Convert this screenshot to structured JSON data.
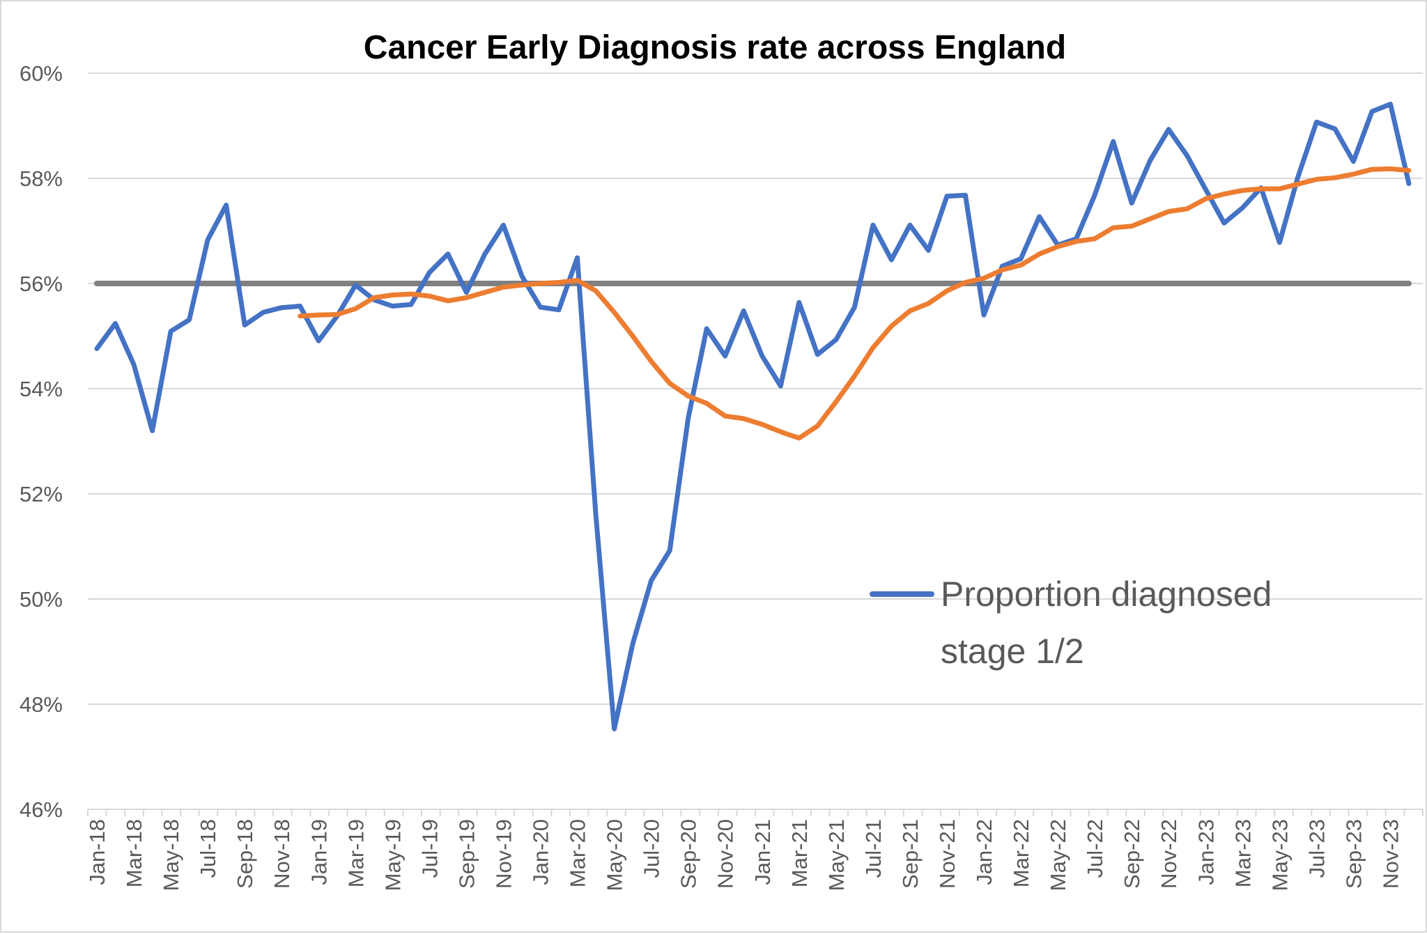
{
  "chart_data": {
    "type": "line",
    "title": "Cancer Early Diagnosis rate across England",
    "xlabel": "",
    "ylabel": "",
    "ylim": [
      46,
      60
    ],
    "yticks": [
      "46%",
      "48%",
      "50%",
      "52%",
      "54%",
      "56%",
      "58%",
      "60%"
    ],
    "ytick_values": [
      46,
      48,
      50,
      52,
      54,
      56,
      58,
      60
    ],
    "grid": true,
    "legend_placement": "center-right",
    "categories": [
      "Jan-18",
      "Feb-18",
      "Mar-18",
      "Apr-18",
      "May-18",
      "Jun-18",
      "Jul-18",
      "Aug-18",
      "Sep-18",
      "Oct-18",
      "Nov-18",
      "Dec-18",
      "Jan-19",
      "Feb-19",
      "Mar-19",
      "Apr-19",
      "May-19",
      "Jun-19",
      "Jul-19",
      "Aug-19",
      "Sep-19",
      "Oct-19",
      "Nov-19",
      "Dec-19",
      "Jan-20",
      "Feb-20",
      "Mar-20",
      "Apr-20",
      "May-20",
      "Jun-20",
      "Jul-20",
      "Aug-20",
      "Sep-20",
      "Oct-20",
      "Nov-20",
      "Dec-20",
      "Jan-21",
      "Feb-21",
      "Mar-21",
      "Apr-21",
      "May-21",
      "Jun-21",
      "Jul-21",
      "Aug-21",
      "Sep-21",
      "Oct-21",
      "Nov-21",
      "Dec-21",
      "Jan-22",
      "Feb-22",
      "Mar-22",
      "Apr-22",
      "May-22",
      "Jun-22",
      "Jul-22",
      "Aug-22",
      "Sep-22",
      "Oct-22",
      "Nov-22",
      "Dec-22",
      "Jan-23",
      "Feb-23",
      "Mar-23",
      "Apr-23",
      "May-23",
      "Jun-23",
      "Jul-23",
      "Aug-23",
      "Sep-23",
      "Oct-23",
      "Nov-23",
      "Dec-23"
    ],
    "shown_tick_step": 2,
    "series": [
      {
        "name": "Proportion diagnosed stage 1/2",
        "color": "#4472C4",
        "values": [
          54.76,
          55.24,
          54.46,
          53.2,
          55.09,
          55.31,
          56.83,
          57.49,
          55.21,
          55.45,
          55.54,
          55.57,
          54.91,
          55.38,
          55.97,
          55.69,
          55.57,
          55.6,
          56.21,
          56.56,
          55.83,
          56.56,
          57.11,
          56.14,
          55.55,
          55.5,
          56.49,
          51.6,
          47.53,
          49.15,
          50.35,
          50.92,
          53.44,
          55.14,
          54.62,
          55.48,
          54.62,
          54.05,
          55.64,
          54.65,
          54.93,
          55.55,
          57.11,
          56.45,
          57.11,
          56.63,
          57.66,
          57.68,
          55.4,
          56.33,
          56.47,
          57.27,
          56.73,
          56.85,
          57.68,
          58.7,
          57.53,
          58.34,
          58.93,
          58.43,
          57.79,
          57.15,
          57.44,
          57.82,
          56.78,
          58.03,
          59.07,
          58.94,
          58.32,
          59.27,
          59.41,
          57.9
        ]
      },
      {
        "color": "#ED7D31",
        "values": [
          null,
          null,
          null,
          null,
          null,
          null,
          null,
          null,
          null,
          null,
          null,
          55.38,
          55.4,
          55.41,
          55.52,
          55.73,
          55.78,
          55.8,
          55.76,
          55.67,
          55.73,
          55.83,
          55.93,
          55.97,
          56.0,
          56.02,
          56.06,
          55.86,
          55.45,
          55.0,
          54.52,
          54.1,
          53.86,
          53.72,
          53.48,
          53.43,
          53.32,
          53.18,
          53.06,
          53.29,
          53.75,
          54.24,
          54.78,
          55.19,
          55.48,
          55.62,
          55.86,
          56.02,
          56.1,
          56.26,
          56.35,
          56.56,
          56.7,
          56.8,
          56.85,
          57.06,
          57.09,
          57.23,
          57.37,
          57.42,
          57.61,
          57.7,
          57.77,
          57.8,
          57.8,
          57.89,
          57.98,
          58.01,
          58.08,
          58.17,
          58.18,
          58.15
        ]
      },
      {
        "color": "#808080",
        "constant": 56
      }
    ],
    "legend": {
      "entries": [
        {
          "label_line1": "Proportion diagnosed",
          "label_line2": "stage 1/2",
          "color": "#4472C4"
        }
      ]
    }
  }
}
